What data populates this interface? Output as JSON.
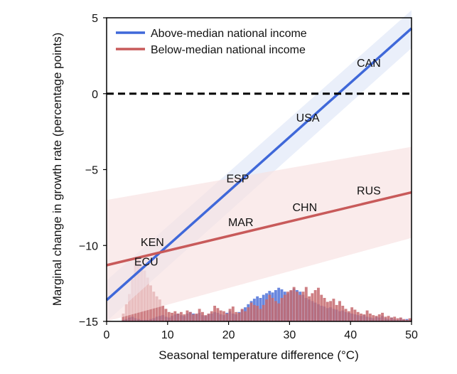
{
  "chart_data": {
    "type": "line",
    "xlabel": "Seasonal temperature difference (°C)",
    "ylabel": "Marginal change in growth rate (percentage points)",
    "xlim": [
      0,
      50
    ],
    "ylim": [
      -15,
      5
    ],
    "x_ticks": [
      0,
      10,
      20,
      30,
      40,
      50
    ],
    "y_ticks": [
      5,
      0,
      -5,
      -10,
      -15
    ],
    "x_tick_labels": [
      "0",
      "10",
      "20",
      "30",
      "40",
      "50"
    ],
    "y_tick_labels": [
      "5",
      "0",
      "−5",
      "−10",
      "−15"
    ],
    "grid": false,
    "legend_position": "top-left",
    "reference_line": {
      "y": 0,
      "style": "dashed",
      "color": "#000000"
    },
    "series": [
      {
        "name": "Above-median national income",
        "color": "#3f68d9",
        "band_color": "#dfe6f8",
        "x": [
          0,
          50
        ],
        "y": [
          -13.6,
          4.3
        ],
        "band_upper": [
          -12.3,
          5.5
        ],
        "band_lower": [
          -15.0,
          3.0
        ]
      },
      {
        "name": "Below-median national income",
        "color": "#c85a5a",
        "band_color": "#f7e1e1",
        "x": [
          0,
          50
        ],
        "y": [
          -11.3,
          -6.5
        ],
        "band_upper": [
          -7.0,
          -3.5
        ],
        "band_lower": [
          -15.0,
          -9.5
        ]
      }
    ],
    "annotations": [
      {
        "text": "CAN",
        "x": 43,
        "y": 2.0
      },
      {
        "text": "USA",
        "x": 33,
        "y": -1.6
      },
      {
        "text": "ESP",
        "x": 21.5,
        "y": -5.6
      },
      {
        "text": "RUS",
        "x": 43,
        "y": -6.4
      },
      {
        "text": "CHN",
        "x": 32.5,
        "y": -7.5
      },
      {
        "text": "MAR",
        "x": 22,
        "y": -8.5
      },
      {
        "text": "KEN",
        "x": 7.5,
        "y": -9.8
      },
      {
        "text": "ECU",
        "x": 6.5,
        "y": -11.1
      }
    ],
    "histograms": {
      "bin_width": 0.5,
      "bin_start": 2.5,
      "above_median_color": "#4f72d8",
      "below_median_color": "#c56a6f",
      "above_median": [
        0.2,
        0.3,
        0.5,
        0.6,
        0.4,
        0.3,
        0.2,
        0.2,
        0.2,
        0.3,
        0.4,
        0.6,
        0.7,
        0.8,
        0.6,
        0.5,
        0.7,
        0.9,
        1.0,
        0.8,
        0.7,
        1.0,
        1.2,
        1.0,
        0.9,
        1.1,
        0.8,
        0.7,
        0.9,
        1.0,
        1.2,
        1.1,
        0.9,
        0.8,
        1.1,
        1.3,
        1.0,
        0.9,
        1.2,
        1.5,
        1.8,
        2.2,
        2.6,
        2.9,
        3.2,
        3.0,
        3.4,
        3.6,
        3.9,
        3.7,
        4.0,
        4.3,
        4.1,
        3.8,
        3.6,
        3.9,
        4.2,
        4.0,
        3.8,
        3.4,
        3.0,
        2.8,
        2.6,
        2.4,
        2.2,
        2.0,
        1.9,
        1.7,
        1.8,
        1.6,
        1.5,
        1.3,
        1.4,
        1.2,
        1.1,
        1.0,
        0.9,
        0.8,
        0.7,
        0.8,
        0.6,
        0.5,
        0.4,
        0.6,
        0.5,
        0.7,
        0.4,
        0.3,
        0.5,
        0.3,
        0.2,
        0.4,
        0.2,
        0.3,
        0.2
      ],
      "below_median": [
        1.0,
        2.2,
        3.5,
        5.4,
        7.6,
        7.9,
        7.2,
        6.5,
        5.6,
        4.6,
        3.8,
        3.2,
        2.8,
        2.0,
        1.6,
        1.2,
        1.1,
        1.3,
        1.0,
        1.2,
        0.9,
        1.4,
        1.2,
        0.9,
        1.0,
        1.6,
        1.2,
        0.8,
        1.0,
        1.3,
        2.0,
        1.7,
        1.4,
        1.3,
        1.0,
        1.6,
        1.9,
        1.2,
        1.1,
        1.6,
        1.3,
        1.8,
        2.4,
        2.1,
        2.0,
        1.6,
        2.1,
        2.8,
        3.4,
        3.0,
        2.6,
        2.3,
        3.0,
        3.4,
        3.8,
        4.0,
        4.4,
        3.8,
        3.4,
        3.8,
        4.4,
        3.2,
        3.6,
        4.0,
        4.3,
        3.4,
        3.0,
        2.5,
        2.6,
        2.9,
        2.1,
        2.6,
        2.0,
        1.6,
        1.3,
        1.8,
        1.5,
        1.2,
        1.0,
        0.9,
        1.4,
        1.0,
        0.8,
        0.7,
        0.9,
        1.1,
        0.6,
        0.7,
        0.5,
        0.6,
        0.4,
        0.5,
        0.3,
        0.2,
        0.4
      ]
    }
  }
}
